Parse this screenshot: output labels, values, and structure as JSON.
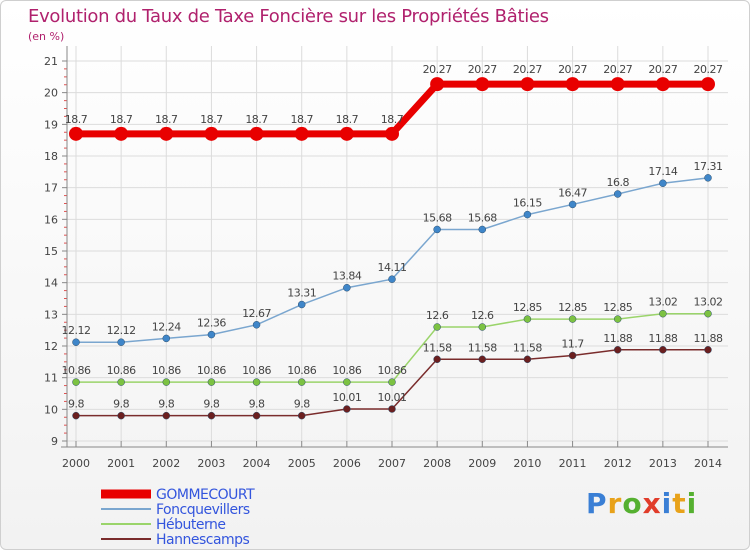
{
  "title": "Evolution du Taux de Taxe Foncière sur les Propriétés Bâties",
  "subtitle": "(en %)",
  "logo": {
    "text": "Proxiti",
    "letter_colors": [
      "#3a7fd5",
      "#e8a21a",
      "#55b030",
      "#e13c2a",
      "#3a7fd5",
      "#e8a21a",
      "#55b030"
    ]
  },
  "chart_data": {
    "type": "line",
    "title": "Evolution du Taux de Taxe Foncière sur les Propriétés Bâties",
    "ylabel": "(en %)",
    "x": [
      "2000",
      "2001",
      "2002",
      "2003",
      "2004",
      "2005",
      "2006",
      "2007",
      "2008",
      "2009",
      "2010",
      "2011",
      "2012",
      "2013",
      "2014"
    ],
    "ylim": [
      9,
      21
    ],
    "yticks": [
      "9",
      "10",
      "11",
      "12",
      "13",
      "14",
      "15",
      "16",
      "17",
      "18",
      "19",
      "20",
      "21"
    ],
    "grid": true,
    "legend": "bottom-left",
    "series": [
      {
        "name": "GOMMECOURT",
        "color": "#e80000",
        "thick": true,
        "values": [
          18.7,
          18.7,
          18.7,
          18.7,
          18.7,
          18.7,
          18.7,
          18.7,
          20.27,
          20.27,
          20.27,
          20.27,
          20.27,
          20.27,
          20.27
        ],
        "labels": [
          "18.7",
          "18.7",
          "18.7",
          "18.7",
          "18.7",
          "18.7",
          "18.7",
          "18.7",
          "20.27",
          "20.27",
          "20.27",
          "20.27",
          "20.27",
          "20.27",
          "20.27"
        ]
      },
      {
        "name": "Foncquevillers",
        "color": "#7aa6cf",
        "marker": "#3f86c9",
        "values": [
          12.12,
          12.12,
          12.24,
          12.36,
          12.67,
          13.31,
          13.84,
          14.11,
          15.68,
          15.68,
          16.15,
          16.47,
          16.8,
          17.14,
          17.31
        ],
        "labels": [
          "12.12",
          "12.12",
          "12.24",
          "12.36",
          "12.67",
          "13.31",
          "13.84",
          "14.11",
          "15.68",
          "15.68",
          "16.15",
          "16.47",
          "16.8",
          "17.14",
          "17.31"
        ]
      },
      {
        "name": "Hébuterne",
        "color": "#9ad46a",
        "marker": "#7cc242",
        "values": [
          10.86,
          10.86,
          10.86,
          10.86,
          10.86,
          10.86,
          10.86,
          10.86,
          12.6,
          12.6,
          12.85,
          12.85,
          12.85,
          13.02,
          13.02
        ],
        "labels": [
          "10.86",
          "10.86",
          "10.86",
          "10.86",
          "10.86",
          "10.86",
          "10.86",
          "10.86",
          "12.6",
          "12.6",
          "12.85",
          "12.85",
          "12.85",
          "13.02",
          "13.02"
        ]
      },
      {
        "name": "Hannescamps",
        "color": "#7a2c2c",
        "marker": "#6b1f1f",
        "values": [
          9.8,
          9.8,
          9.8,
          9.8,
          9.8,
          9.8,
          10.01,
          10.01,
          11.58,
          11.58,
          11.58,
          11.7,
          11.88,
          11.88,
          11.88
        ],
        "labels": [
          "9.8",
          "9.8",
          "9.8",
          "9.8",
          "9.8",
          "9.8",
          "10.01",
          "10.01",
          "11.58",
          "11.58",
          "11.58",
          "11.7",
          "11.88",
          "11.88",
          "11.88"
        ]
      }
    ]
  }
}
